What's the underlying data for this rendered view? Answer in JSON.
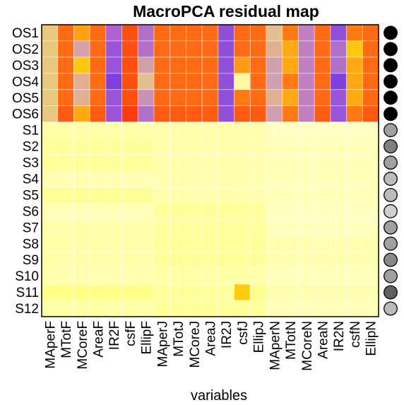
{
  "chart_data": {
    "type": "heatmap",
    "title": "MacroPCA residual map",
    "xlabel": "variables",
    "ylabel": "",
    "rows": [
      "OS1",
      "OS2",
      "OS3",
      "OS4",
      "OS5",
      "OS6",
      "S1",
      "S2",
      "S3",
      "S4",
      "S5",
      "S6",
      "S7",
      "S8",
      "S9",
      "S10",
      "S11",
      "S12"
    ],
    "columns": [
      "MAperF",
      "MTotF",
      "MCoreF",
      "AreaF",
      "IR2F",
      "csfF",
      "EllipF",
      "MAperJ",
      "MTotJ",
      "MCoreJ",
      "AreaJ",
      "IR2J",
      "csfJ",
      "EllipJ",
      "MAperN",
      "MTotN",
      "MCoreN",
      "AreaN",
      "IR2N",
      "csfN",
      "EllipN"
    ],
    "cells": [
      [
        "#E8C77E",
        "#FF6A12",
        "#FFA010",
        "#FF6A12",
        "#B060D0",
        "#FF5010",
        "#B070C8",
        "#FF6A12",
        "#FF6A12",
        "#FF6A12",
        "#FF6A12",
        "#9050D8",
        "#FF6A12",
        "#FF6A12",
        "#E0C090",
        "#FF7A12",
        "#C080C0",
        "#FF6A12",
        "#9050D8",
        "#FF7A12",
        "#FF6A12"
      ],
      [
        "#E8C77E",
        "#FF6A12",
        "#D8A0A8",
        "#FF6A12",
        "#9A55D8",
        "#FF5010",
        "#B070C8",
        "#FF6A12",
        "#FF6A12",
        "#FF6A12",
        "#FF6A12",
        "#9050D8",
        "#FF6A12",
        "#FF6A12",
        "#E0B090",
        "#FFA810",
        "#C080C0",
        "#FF6A12",
        "#B070C8",
        "#FFC810",
        "#FF6A12"
      ],
      [
        "#E8C77E",
        "#FF6A12",
        "#FFC810",
        "#FF6A12",
        "#9A55D8",
        "#FF5010",
        "#D0A0A8",
        "#FF6A12",
        "#FF6A12",
        "#FF6A12",
        "#FF6A12",
        "#9050D8",
        "#FF9A12",
        "#FF6A12",
        "#D0A0B0",
        "#FFA810",
        "#C080C0",
        "#FF6A12",
        "#B070C8",
        "#FFA810",
        "#FF6A12"
      ],
      [
        "#E8C77E",
        "#FF6A12",
        "#E0B090",
        "#FF6A12",
        "#8040E0",
        "#FF5010",
        "#E0C090",
        "#FF6A12",
        "#FF6A12",
        "#FF6A12",
        "#FF6A12",
        "#9050D8",
        "#FFF8A0",
        "#FF6A12",
        "#D0A0B0",
        "#FF7A12",
        "#C080C0",
        "#FF6A12",
        "#8040E0",
        "#FFA810",
        "#FF6A12"
      ],
      [
        "#E8C77E",
        "#FF6A12",
        "#E0B090",
        "#FF6A12",
        "#9A55D8",
        "#FF5010",
        "#C890B8",
        "#FF6A12",
        "#FF6A12",
        "#FF6A12",
        "#FF6A12",
        "#9050D8",
        "#FF7A12",
        "#FF6A12",
        "#E0B090",
        "#FFA810",
        "#C080C0",
        "#FF6A12",
        "#9A55D8",
        "#FFA810",
        "#FF6A12"
      ],
      [
        "#E8C77E",
        "#FF5A12",
        "#FFA810",
        "#FF5A12",
        "#9A55D8",
        "#FF3A10",
        "#B070C8",
        "#FF5A12",
        "#FF5A12",
        "#FF5A12",
        "#FF5A12",
        "#9050D8",
        "#FF5A12",
        "#FF5A12",
        "#D0A0B0",
        "#FF7A12",
        "#C080C0",
        "#FF5A12",
        "#9A55D8",
        "#FF7A12",
        "#FF5A12"
      ],
      [
        "#FFFFA8",
        "#FFFFA8",
        "#FFFFA8",
        "#FFFFA8",
        "#FFFFA8",
        "#FFFFA8",
        "#FFFFA8",
        "#FFFFAC",
        "#FFFFAC",
        "#FFFFAC",
        "#FFFFAC",
        "#FFFFAC",
        "#FFFFAC",
        "#FFFFAC",
        "#FFFFC4",
        "#FFFFC4",
        "#FFFFC4",
        "#FFFFC4",
        "#FFFFC4",
        "#FFFFC4",
        "#FFFFC4"
      ],
      [
        "#FFFF9C",
        "#FFFF9C",
        "#FFFF9C",
        "#FFFF9C",
        "#FFFF9C",
        "#FFFF9C",
        "#FFFF9C",
        "#FFFFAC",
        "#FFFFAC",
        "#FFFFAC",
        "#FFFFAC",
        "#FFFFAC",
        "#FFFFAC",
        "#FFFFAC",
        "#FFFFB8",
        "#FFFFB8",
        "#FFFFB8",
        "#FFFFB8",
        "#FFFFB8",
        "#FFFFB8",
        "#FFFFB8"
      ],
      [
        "#FFFF9C",
        "#FFFF9C",
        "#FFFF9C",
        "#FFFF9C",
        "#FFFF9C",
        "#FFFF9C",
        "#FFFF9C",
        "#FFFFAC",
        "#FFFFAC",
        "#FFFFAC",
        "#FFFFAC",
        "#FFFFAC",
        "#FFFFAC",
        "#FFFFAC",
        "#FFFFB8",
        "#FFFFB8",
        "#FFFFB8",
        "#FFFFB8",
        "#FFFFB8",
        "#FFFFB8",
        "#FFFFB8"
      ],
      [
        "#FFFFB4",
        "#FFFFB4",
        "#FFFFB4",
        "#FFFFB4",
        "#FFFFB4",
        "#FFFFB4",
        "#FFFFB4",
        "#FFFFB0",
        "#FFFFB0",
        "#FFFFB0",
        "#FFFFB0",
        "#FFFFB0",
        "#FFFFB0",
        "#FFFFB0",
        "#FFFFB8",
        "#FFFFB8",
        "#FFFFB8",
        "#FFFFB8",
        "#FFFFB8",
        "#FFFFB8",
        "#FFFFB8"
      ],
      [
        "#FFFF98",
        "#FFFF98",
        "#FFFF98",
        "#FFFF98",
        "#FFFF98",
        "#FFFF98",
        "#FFFF98",
        "#FFFFAC",
        "#FFFFAC",
        "#FFFFAC",
        "#FFFFAC",
        "#FFFFAC",
        "#FFFFAC",
        "#FFFFAC",
        "#FFFFB8",
        "#FFFFB8",
        "#FFFFB8",
        "#FFFFB8",
        "#FFFFB8",
        "#FFFFB8",
        "#FFFFB8"
      ],
      [
        "#FFFFB8",
        "#FFFFB8",
        "#FFFFB8",
        "#FFFFB8",
        "#FFFFB8",
        "#FFFFB8",
        "#FFFFB8",
        "#FFFF9C",
        "#FFFF9C",
        "#FFFF9C",
        "#FFFF9C",
        "#FFFF9C",
        "#FFFF9C",
        "#FFFF9C",
        "#FFFFC0",
        "#FFFFC0",
        "#FFFFC0",
        "#FFFFC0",
        "#FFFFC0",
        "#FFFFC0",
        "#FFFFC0"
      ],
      [
        "#FFFFA8",
        "#FFFFA8",
        "#FFFFA8",
        "#FFFFA8",
        "#FFFFA8",
        "#FFFFA8",
        "#FFFFA8",
        "#FFFF9C",
        "#FFFF9C",
        "#FFFF9C",
        "#FFFF9C",
        "#FFFF9C",
        "#FFFF9C",
        "#FFFF9C",
        "#FFFFBC",
        "#FFFFBC",
        "#FFFFBC",
        "#FFFFBC",
        "#FFFFBC",
        "#FFFFBC",
        "#FFFFBC"
      ],
      [
        "#FFFFA8",
        "#FFFFA8",
        "#FFFFA8",
        "#FFFFA8",
        "#FFFFA8",
        "#FFFFA8",
        "#FFFFA8",
        "#FFFF98",
        "#FFFF98",
        "#FFFF98",
        "#FFFF98",
        "#FFFF98",
        "#FFFF98",
        "#FFFF98",
        "#FFFFB0",
        "#FFFFB0",
        "#FFFFB0",
        "#FFFFB0",
        "#FFFFB0",
        "#FFFFB0",
        "#FFFFB0"
      ],
      [
        "#FFFFA8",
        "#FFFFA8",
        "#FFFFA8",
        "#FFFFA8",
        "#FFFFA8",
        "#FFFFA8",
        "#FFFFA8",
        "#FFFF98",
        "#FFFF98",
        "#FFFF98",
        "#FFFF98",
        "#FFFF98",
        "#FFFF98",
        "#FFFF98",
        "#FFFFB0",
        "#FFFFB0",
        "#FFFFB0",
        "#FFFFB0",
        "#FFFFB0",
        "#FFFFB0",
        "#FFFFB0"
      ],
      [
        "#FFFFB0",
        "#FFFFB0",
        "#FFFFB0",
        "#FFFFB0",
        "#FFFFB0",
        "#FFFFB0",
        "#FFFFB0",
        "#FFFFA8",
        "#FFFFA8",
        "#FFFFA8",
        "#FFFFA8",
        "#FFFFA8",
        "#FFFFA8",
        "#FFFFA8",
        "#FFFFBC",
        "#FFFFBC",
        "#FFFFBC",
        "#FFFFBC",
        "#FFFFBC",
        "#FFFFBC",
        "#FFFFBC"
      ],
      [
        "#FFFF88",
        "#FFFF88",
        "#FFFF88",
        "#FFFF88",
        "#FFFF88",
        "#FFFF88",
        "#FFFF88",
        "#FFFF9C",
        "#FFFF9C",
        "#FFFF9C",
        "#FFFF9C",
        "#FFFF9C",
        "#FFCC10",
        "#FFFF90",
        "#FFFFB0",
        "#FFFFB0",
        "#FFFFB0",
        "#FFFFB0",
        "#FFFFB0",
        "#FFFFB0",
        "#FFFFB0"
      ],
      [
        "#FFFFA8",
        "#FFFFA8",
        "#FFFFA8",
        "#FFFFA8",
        "#FFFFA8",
        "#FFFFA8",
        "#FFFFA8",
        "#FFFF9C",
        "#FFFF9C",
        "#FFFF9C",
        "#FFFF9C",
        "#FFFF9C",
        "#FFFF9C",
        "#FFFF9C",
        "#FFFFB8",
        "#FFFFB8",
        "#FFFFB8",
        "#FFFFB8",
        "#FFFFB8",
        "#FFFFB8",
        "#FFFFB8"
      ]
    ],
    "row_marker_colors": [
      "#000000",
      "#000000",
      "#000000",
      "#000000",
      "#000000",
      "#000000",
      "#A0A0A0",
      "#808080",
      "#A0A0A0",
      "#BBBBBB",
      "#BBBBBB",
      "#D0D0D0",
      "#A0A0A0",
      "#A0A0A0",
      "#8A8A8A",
      "#A0A0A0",
      "#606060",
      "#BBBBBB"
    ],
    "grid": false,
    "legend": "none"
  }
}
